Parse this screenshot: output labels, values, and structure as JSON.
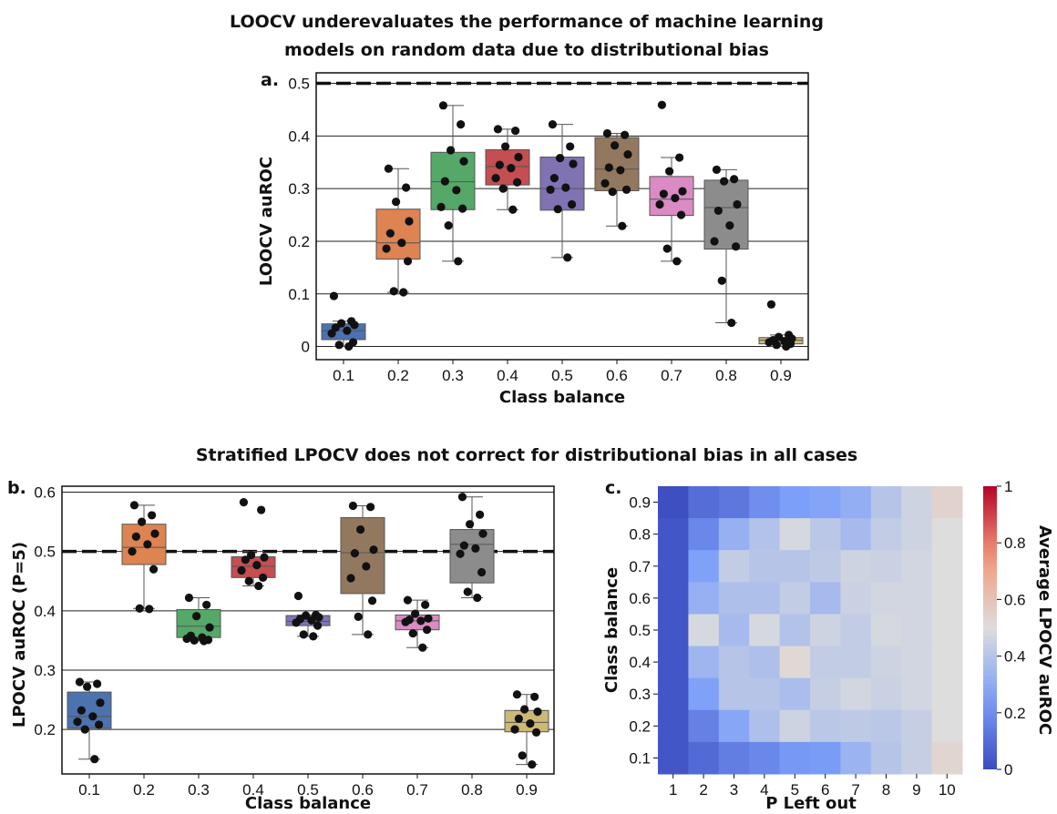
{
  "figure": {
    "title_top_line1": "LOOCV underevaluates the performance of machine learning",
    "title_top_line2": "models on random data due to distributional bias",
    "title_bottom": "Stratified LPOCV does not correct for distributional bias in all cases"
  },
  "chart_data": [
    {
      "type": "box",
      "panel": "a.",
      "xlabel": "Class balance",
      "ylabel": "LOOCV auROC",
      "ylim": [
        -0.025,
        0.52
      ],
      "yticks": [
        0,
        0.1,
        0.2,
        0.3,
        0.4,
        0.5
      ],
      "ytick_labels": [
        "0",
        "0.1",
        "0.2",
        "0.3",
        "0.4",
        "0.5"
      ],
      "grid": true,
      "reference_line": 0.5,
      "categories": [
        "0.1",
        "0.2",
        "0.3",
        "0.4",
        "0.5",
        "0.6",
        "0.7",
        "0.8",
        "0.9"
      ],
      "colors": [
        "#4C72B0",
        "#DD8452",
        "#55A868",
        "#C44E52",
        "#8172B3",
        "#937860",
        "#DA8BC3",
        "#8C8C8C",
        "#CCB974"
      ],
      "boxes": [
        {
          "q1": 0.013,
          "median": 0.03,
          "q3": 0.043,
          "whislo": 0.0,
          "whishi": 0.048,
          "points": [
            0.096,
            0.048,
            0.044,
            0.041,
            0.036,
            0.03,
            0.025,
            0.008,
            0.003,
            0.0
          ]
        },
        {
          "q1": 0.166,
          "median": 0.197,
          "q3": 0.261,
          "whislo": 0.103,
          "whishi": 0.338,
          "points": [
            0.338,
            0.302,
            0.275,
            0.238,
            0.215,
            0.197,
            0.186,
            0.162,
            0.105,
            0.103
          ]
        },
        {
          "q1": 0.26,
          "median": 0.313,
          "q3": 0.369,
          "whislo": 0.162,
          "whishi": 0.458,
          "points": [
            0.458,
            0.422,
            0.373,
            0.352,
            0.314,
            0.297,
            0.265,
            0.262,
            0.23,
            0.162
          ]
        },
        {
          "q1": 0.307,
          "median": 0.342,
          "q3": 0.374,
          "whislo": 0.26,
          "whishi": 0.413,
          "points": [
            0.413,
            0.41,
            0.38,
            0.36,
            0.345,
            0.339,
            0.32,
            0.312,
            0.3,
            0.26
          ]
        },
        {
          "q1": 0.259,
          "median": 0.3,
          "q3": 0.36,
          "whislo": 0.169,
          "whishi": 0.422,
          "points": [
            0.422,
            0.38,
            0.358,
            0.347,
            0.32,
            0.302,
            0.298,
            0.27,
            0.261,
            0.169
          ]
        },
        {
          "q1": 0.296,
          "median": 0.337,
          "q3": 0.397,
          "whislo": 0.229,
          "whishi": 0.405,
          "points": [
            0.405,
            0.402,
            0.382,
            0.365,
            0.34,
            0.335,
            0.31,
            0.298,
            0.294,
            0.229
          ]
        },
        {
          "q1": 0.249,
          "median": 0.28,
          "q3": 0.323,
          "whislo": 0.162,
          "whishi": 0.359,
          "points": [
            0.459,
            0.359,
            0.333,
            0.295,
            0.29,
            0.282,
            0.27,
            0.25,
            0.186,
            0.162
          ]
        },
        {
          "q1": 0.185,
          "median": 0.264,
          "q3": 0.316,
          "whislo": 0.045,
          "whishi": 0.336,
          "points": [
            0.336,
            0.318,
            0.314,
            0.27,
            0.258,
            0.23,
            0.2,
            0.19,
            0.125,
            0.045
          ]
        },
        {
          "q1": 0.005,
          "median": 0.012,
          "q3": 0.017,
          "whislo": 0.0,
          "whishi": 0.022,
          "points": [
            0.08,
            0.022,
            0.018,
            0.015,
            0.012,
            0.01,
            0.008,
            0.005,
            0.003,
            0.0
          ]
        }
      ]
    },
    {
      "type": "box",
      "panel": "b.",
      "xlabel": "Class balance",
      "ylabel": "LPOCV auROC (P=5)",
      "ylim": [
        0.125,
        0.61
      ],
      "yticks": [
        0.2,
        0.3,
        0.4,
        0.5,
        0.6
      ],
      "ytick_labels": [
        "0.2",
        "0.3",
        "0.4",
        "0.5",
        "0.6"
      ],
      "grid": true,
      "reference_line": 0.5,
      "categories": [
        "0.1",
        "0.2",
        "0.3",
        "0.4",
        "0.5",
        "0.6",
        "0.7",
        "0.8",
        "0.9"
      ],
      "colors": [
        "#4C72B0",
        "#DD8452",
        "#55A868",
        "#C44E52",
        "#8172B3",
        "#937860",
        "#DA8BC3",
        "#8C8C8C",
        "#CCB974"
      ],
      "boxes": [
        {
          "q1": 0.202,
          "median": 0.222,
          "q3": 0.263,
          "whislo": 0.15,
          "whishi": 0.28,
          "points": [
            0.28,
            0.277,
            0.272,
            0.245,
            0.232,
            0.222,
            0.213,
            0.208,
            0.2,
            0.15
          ]
        },
        {
          "q1": 0.478,
          "median": 0.507,
          "q3": 0.546,
          "whislo": 0.404,
          "whishi": 0.578,
          "points": [
            0.578,
            0.561,
            0.55,
            0.53,
            0.525,
            0.512,
            0.5,
            0.47,
            0.404,
            0.403
          ]
        },
        {
          "q1": 0.355,
          "median": 0.374,
          "q3": 0.402,
          "whislo": 0.349,
          "whishi": 0.422,
          "points": [
            0.422,
            0.41,
            0.391,
            0.372,
            0.358,
            0.355,
            0.353,
            0.351,
            0.35,
            0.349
          ]
        },
        {
          "q1": 0.456,
          "median": 0.475,
          "q3": 0.491,
          "whislo": 0.442,
          "whishi": 0.5,
          "points": [
            0.583,
            0.57,
            0.494,
            0.49,
            0.486,
            0.477,
            0.468,
            0.456,
            0.45,
            0.442
          ]
        },
        {
          "q1": 0.375,
          "median": 0.382,
          "q3": 0.392,
          "whislo": 0.357,
          "whishi": 0.393,
          "points": [
            0.425,
            0.393,
            0.392,
            0.389,
            0.386,
            0.384,
            0.38,
            0.375,
            0.36,
            0.357
          ]
        },
        {
          "q1": 0.429,
          "median": 0.498,
          "q3": 0.557,
          "whislo": 0.36,
          "whishi": 0.577,
          "points": [
            0.577,
            0.575,
            0.537,
            0.503,
            0.497,
            0.475,
            0.455,
            0.417,
            0.39,
            0.36
          ]
        },
        {
          "q1": 0.368,
          "median": 0.383,
          "q3": 0.393,
          "whislo": 0.338,
          "whishi": 0.418,
          "points": [
            0.418,
            0.41,
            0.395,
            0.387,
            0.385,
            0.383,
            0.381,
            0.368,
            0.362,
            0.338
          ]
        },
        {
          "q1": 0.447,
          "median": 0.512,
          "q3": 0.537,
          "whislo": 0.422,
          "whishi": 0.592,
          "points": [
            0.592,
            0.562,
            0.546,
            0.53,
            0.51,
            0.505,
            0.496,
            0.465,
            0.432,
            0.422
          ]
        },
        {
          "q1": 0.196,
          "median": 0.212,
          "q3": 0.232,
          "whislo": 0.141,
          "whishi": 0.259,
          "points": [
            0.259,
            0.255,
            0.234,
            0.23,
            0.218,
            0.21,
            0.2,
            0.195,
            0.156,
            0.141
          ]
        }
      ]
    },
    {
      "type": "heatmap",
      "panel": "c.",
      "xlabel": "P Left out",
      "ylabel": "Class balance",
      "x": [
        "1",
        "2",
        "3",
        "4",
        "5",
        "6",
        "7",
        "8",
        "9",
        "10"
      ],
      "y": [
        "0.9",
        "0.8",
        "0.7",
        "0.6",
        "0.5",
        "0.4",
        "0.3",
        "0.2",
        "0.1"
      ],
      "colorbar_label": "Average LPOCV auROC",
      "colorbar_ticks": [
        0,
        0.2,
        0.4,
        0.6,
        0.8,
        1
      ],
      "colorbar_tick_labels": [
        "0",
        "0.2",
        "0.4",
        "0.6",
        "0.8",
        "1"
      ],
      "vmin": 0,
      "vmax": 1,
      "colormap": "coolwarm",
      "values": [
        [
          0.01,
          0.1,
          0.13,
          0.2,
          0.25,
          0.27,
          0.31,
          0.4,
          0.46,
          0.54
        ],
        [
          0.03,
          0.18,
          0.32,
          0.39,
          0.48,
          0.41,
          0.36,
          0.43,
          0.46,
          0.5
        ],
        [
          0.03,
          0.26,
          0.43,
          0.4,
          0.4,
          0.42,
          0.46,
          0.45,
          0.47,
          0.5
        ],
        [
          0.03,
          0.32,
          0.38,
          0.38,
          0.43,
          0.36,
          0.45,
          0.47,
          0.47,
          0.5
        ],
        [
          0.03,
          0.48,
          0.36,
          0.48,
          0.39,
          0.46,
          0.43,
          0.48,
          0.47,
          0.5
        ],
        [
          0.03,
          0.34,
          0.4,
          0.38,
          0.52,
          0.43,
          0.43,
          0.46,
          0.47,
          0.5
        ],
        [
          0.03,
          0.26,
          0.4,
          0.4,
          0.37,
          0.44,
          0.47,
          0.45,
          0.47,
          0.5
        ],
        [
          0.03,
          0.16,
          0.28,
          0.38,
          0.46,
          0.41,
          0.42,
          0.41,
          0.44,
          0.5
        ],
        [
          0.03,
          0.09,
          0.15,
          0.18,
          0.23,
          0.24,
          0.33,
          0.4,
          0.44,
          0.53
        ]
      ]
    }
  ]
}
